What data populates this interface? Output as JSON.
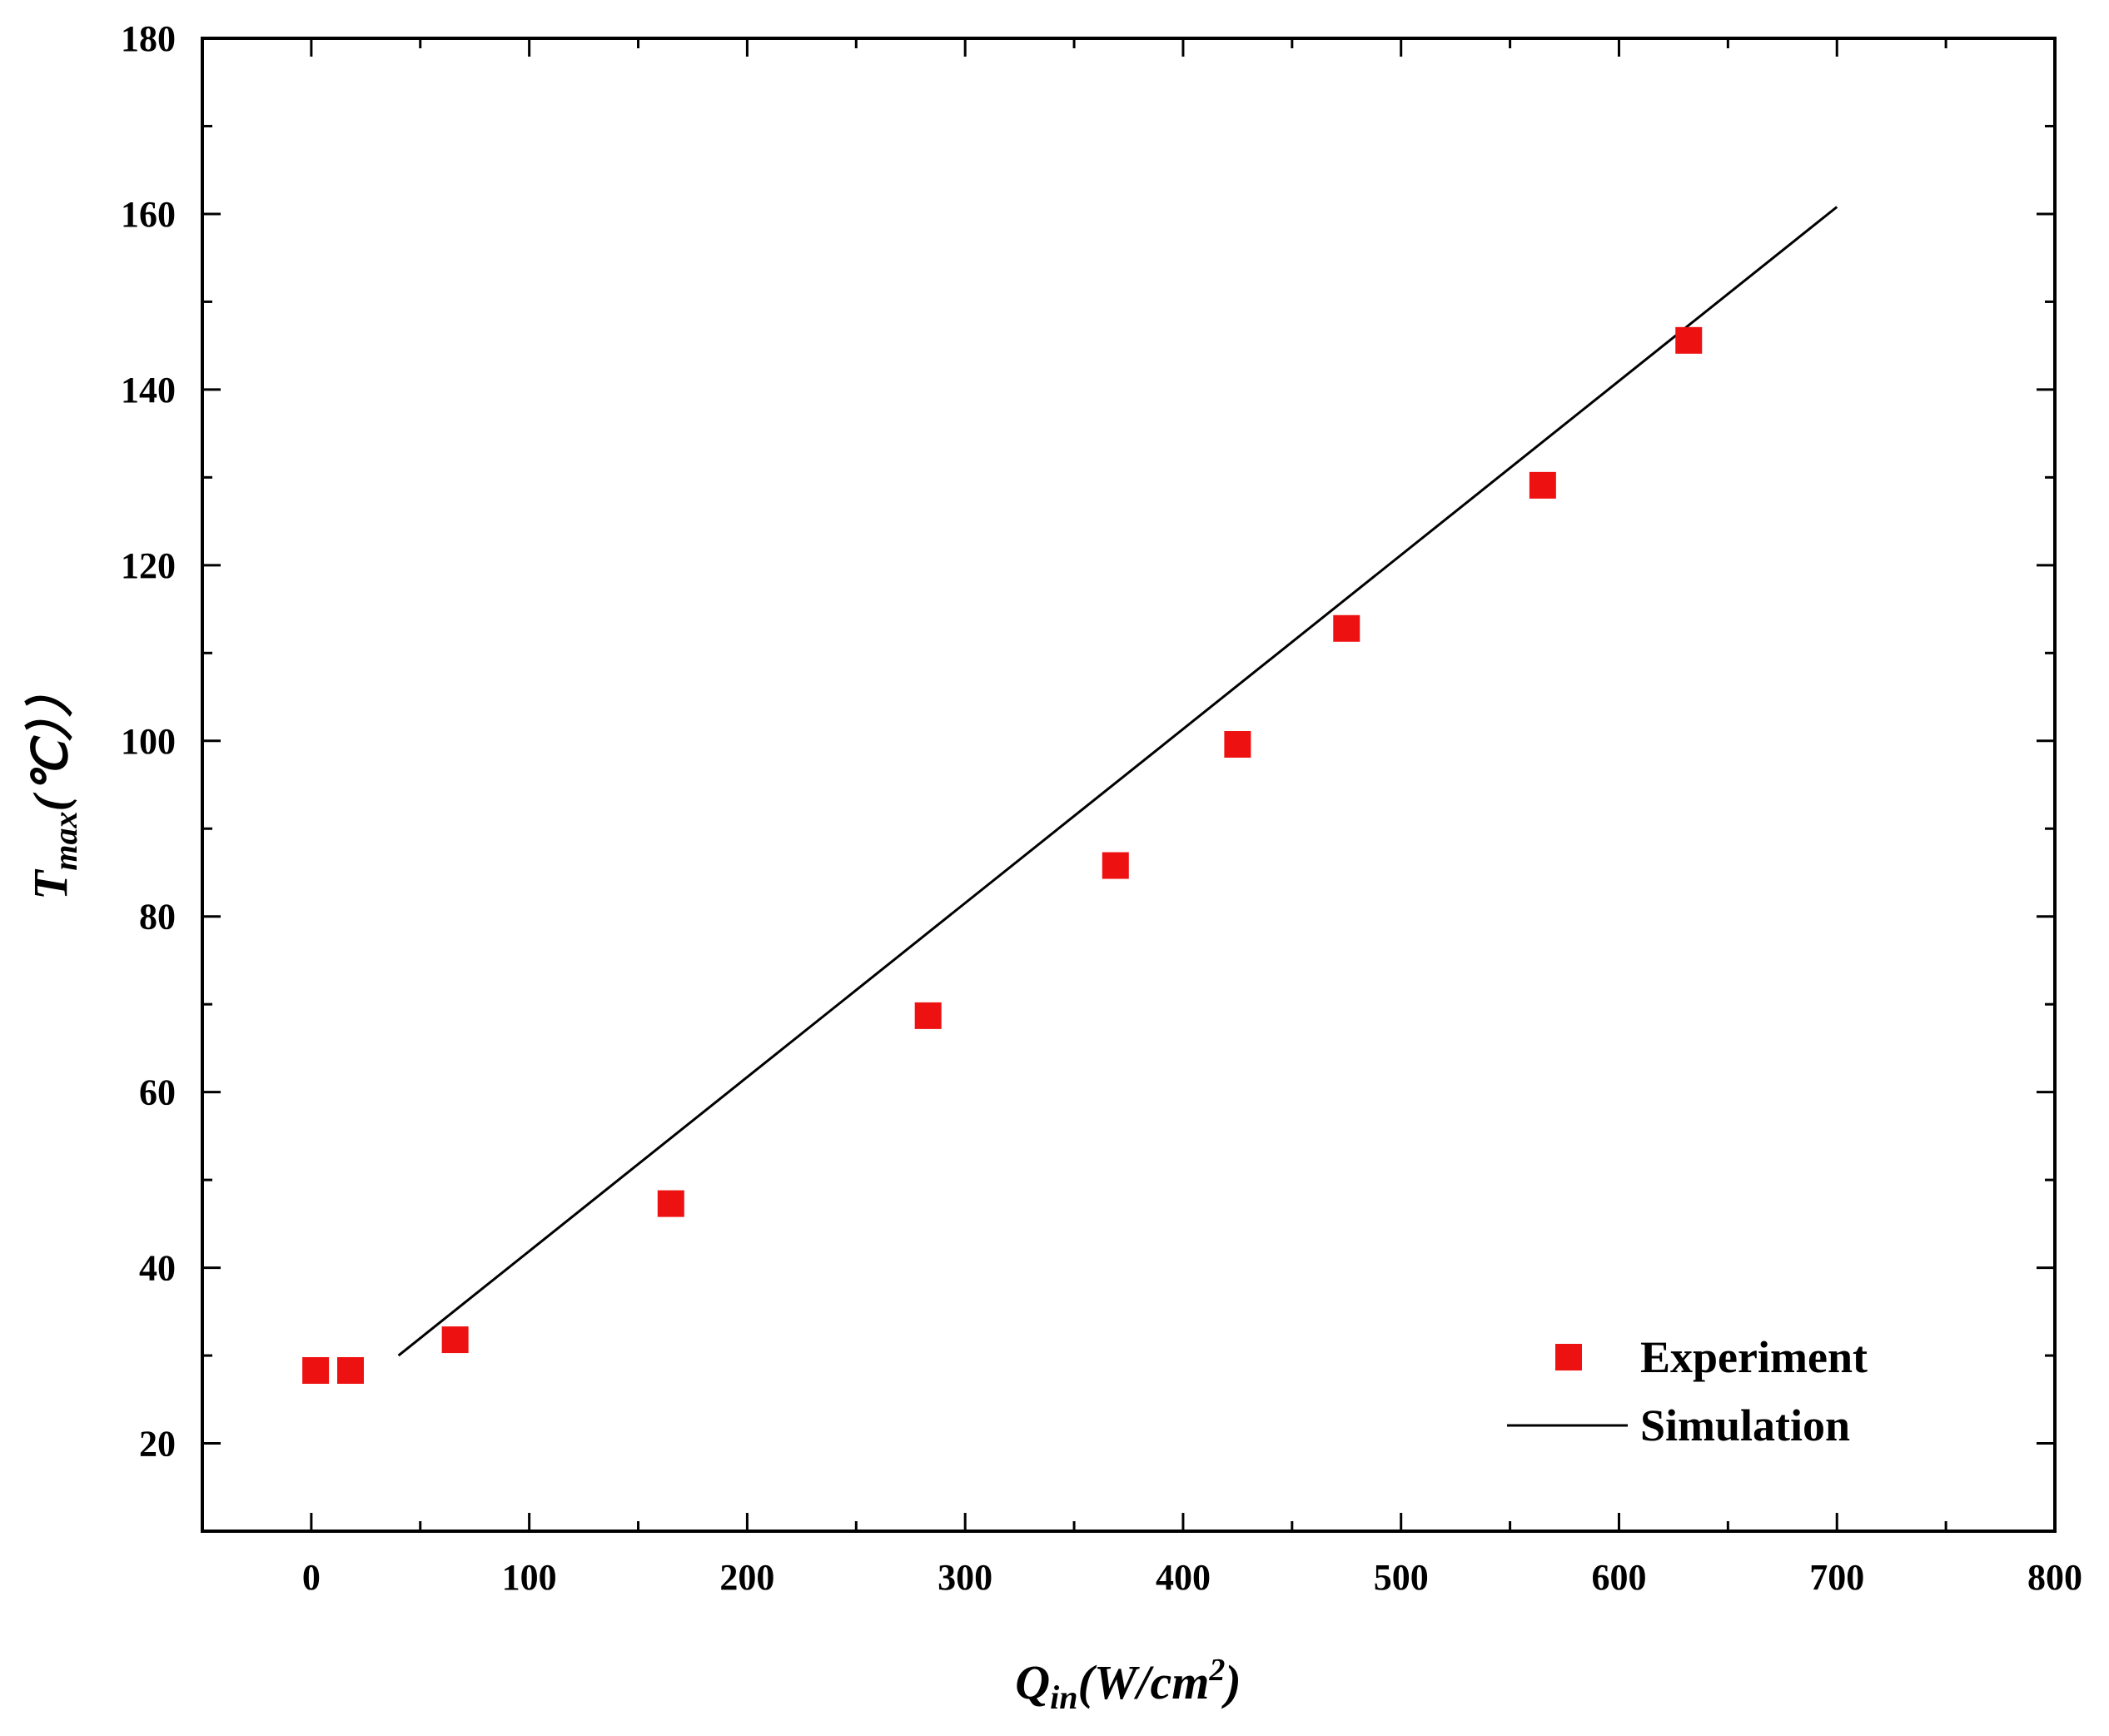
{
  "chart_data": {
    "type": "scatter",
    "xlabel": "Q",
    "xlabel_sub": "in",
    "xlabel_unit": "(W/cm",
    "xlabel_sup": "2",
    "xlabel_close": ")",
    "ylabel": "T",
    "ylabel_sub": "max",
    "ylabel_unit": "(℃））",
    "xlim": [
      -50,
      800
    ],
    "ylim": [
      10,
      180
    ],
    "x_ticks": [
      0,
      100,
      200,
      300,
      400,
      500,
      600,
      700,
      800
    ],
    "y_ticks": [
      20,
      40,
      60,
      80,
      100,
      120,
      140,
      160,
      180
    ],
    "x_tick_labels": [
      "0",
      "100",
      "200",
      "300",
      "400",
      "500",
      "600",
      "700",
      "800"
    ],
    "y_tick_labels": [
      "20",
      "40",
      "60",
      "80",
      "100",
      "120",
      "140",
      "160",
      "180"
    ],
    "grid": false,
    "legend_position": "bottom-right",
    "series": [
      {
        "name": "Experiment",
        "kind": "scatter",
        "marker": "square",
        "color": "#ee1111",
        "x": [
          2,
          18,
          66,
          165,
          283,
          369,
          425,
          475,
          565,
          632
        ],
        "y": [
          28.3,
          28.3,
          31.8,
          47.3,
          68.7,
          85.8,
          99.6,
          112.8,
          129.1,
          145.6
        ]
      },
      {
        "name": "Simulation",
        "kind": "line",
        "color": "#000000",
        "x": [
          40,
          700
        ],
        "y": [
          30.0,
          160.8
        ]
      }
    ]
  }
}
